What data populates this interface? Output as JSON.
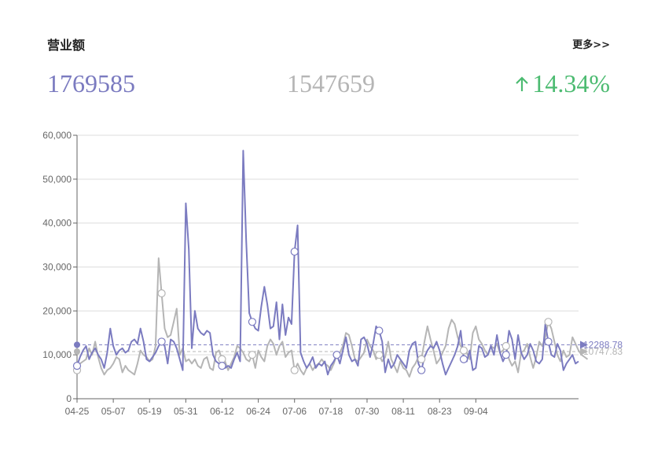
{
  "header": {
    "title": "营业额",
    "more_label": "更多>>"
  },
  "kpis": {
    "current": "1769585",
    "previous": "1547659",
    "change": "14.34%",
    "change_direction": "up"
  },
  "colors": {
    "current": "#7b7bc0",
    "previous": "#b5b5b5",
    "change_up": "#4cbb71",
    "axis": "#666666",
    "grid": "#dddddd"
  },
  "chart_data": {
    "type": "line",
    "title": "",
    "xlabel": "",
    "ylabel": "",
    "ylim": [
      0,
      60000
    ],
    "yticks": [
      0,
      10000,
      20000,
      30000,
      40000,
      50000,
      60000
    ],
    "ytick_labels": [
      "0",
      "10,000",
      "20,000",
      "30,000",
      "40,000",
      "50,000",
      "60,000"
    ],
    "xtick_labels": [
      "04-25",
      "05-07",
      "05-19",
      "05-31",
      "06-12",
      "06-24",
      "07-06",
      "07-18",
      "07-30",
      "08-11",
      "08-23",
      "09-04"
    ],
    "xtick_step_days": 12,
    "grid": true,
    "series": [
      {
        "key": "current",
        "end_value_label": "12288.78",
        "average": 12288.78,
        "values": [
          7500,
          9500,
          11000,
          12000,
          9000,
          10500,
          11500,
          10000,
          9000,
          7000,
          10500,
          16000,
          12000,
          10000,
          11000,
          11500,
          10500,
          11000,
          13000,
          13500,
          12500,
          16000,
          13000,
          9000,
          8500,
          9500,
          10500,
          12000,
          13000,
          12000,
          8000,
          13500,
          13000,
          11500,
          9000,
          6500,
          44500,
          34000,
          11500,
          20000,
          16000,
          15000,
          14500,
          15500,
          15000,
          10000,
          8500,
          8000,
          7500,
          7000,
          7500,
          7000,
          9000,
          10500,
          8500,
          56500,
          36000,
          19500,
          17500,
          16000,
          15500,
          21000,
          25500,
          21500,
          16000,
          16500,
          22000,
          13500,
          21500,
          14500,
          18500,
          17000,
          33500,
          39500,
          10500,
          8500,
          7000,
          8000,
          9500,
          7000,
          8000,
          7500,
          8500,
          5500,
          7500,
          8500,
          10000,
          8000,
          11000,
          14000,
          10000,
          8500,
          9000,
          7500,
          13500,
          14000,
          12500,
          9500,
          12500,
          16500,
          15500,
          13000,
          6000,
          9000,
          7000,
          8000,
          10000,
          9000,
          8000,
          7000,
          11000,
          12500,
          13000,
          8000,
          6500,
          9500,
          11000,
          12000,
          11500,
          13000,
          11000,
          8000,
          5500,
          7000,
          8500,
          10000,
          12000,
          15500,
          9000,
          8500,
          11000,
          6500,
          7000,
          12000,
          11500,
          9500,
          10000,
          12000,
          10000,
          14500,
          10500,
          8500,
          10000,
          15500,
          13500,
          9000,
          14500,
          10500,
          9000,
          10000,
          12500,
          11000,
          8500,
          8000,
          9000,
          17000,
          13000,
          10000,
          9500,
          12500,
          11000,
          6500,
          8000,
          9000,
          10000,
          8000,
          8500
        ]
      },
      {
        "key": "previous",
        "end_value_label": "10747.83",
        "average": 10747.83,
        "values": [
          6500,
          8000,
          8500,
          9000,
          11500,
          10000,
          13000,
          9500,
          7000,
          5500,
          6500,
          7000,
          8000,
          9500,
          9000,
          6000,
          7500,
          6500,
          6000,
          5500,
          8000,
          11000,
          10000,
          9500,
          8500,
          9000,
          12000,
          32000,
          24000,
          16000,
          14000,
          14500,
          17500,
          20500,
          10000,
          11500,
          8500,
          9000,
          8000,
          9000,
          7500,
          7000,
          9000,
          9500,
          7000,
          6500,
          10500,
          11000,
          9000,
          8500,
          6500,
          8000,
          9500,
          12000,
          11500,
          10500,
          9000,
          8500,
          10000,
          7000,
          11000,
          9500,
          8500,
          12000,
          13500,
          12500,
          10000,
          12000,
          13000,
          9500,
          10500,
          11000,
          6500,
          8000,
          6500,
          5500,
          7000,
          8000,
          6500,
          7500,
          8000,
          9000,
          8000,
          7500,
          6500,
          8000,
          10000,
          10500,
          12000,
          15000,
          14500,
          12000,
          9000,
          8500,
          9500,
          10500,
          13500,
          12000,
          11000,
          9000,
          10000,
          8500,
          9500,
          13000,
          9000,
          7500,
          6000,
          8500,
          7000,
          6500,
          5000,
          7000,
          8000,
          9500,
          9000,
          13000,
          16500,
          13500,
          11000,
          8000,
          9000,
          10500,
          12000,
          16000,
          18000,
          17000,
          14000,
          12000,
          11000,
          10500,
          9000,
          15000,
          16500,
          13500,
          12500,
          11000,
          10000,
          12000,
          11500,
          12500,
          10500,
          11000,
          12000,
          9000,
          7500,
          8500,
          6000,
          10500,
          11000,
          12500,
          9500,
          7000,
          9500,
          13000,
          12000,
          14000,
          17500,
          16000,
          13000,
          10000,
          8500,
          11000,
          9500,
          10000,
          14000,
          12500,
          11000,
          10000,
          9500,
          9000
        ]
      }
    ],
    "marker_indices": [
      0,
      28,
      48,
      58,
      72,
      86,
      100,
      114,
      128,
      142,
      156,
      170
    ]
  }
}
